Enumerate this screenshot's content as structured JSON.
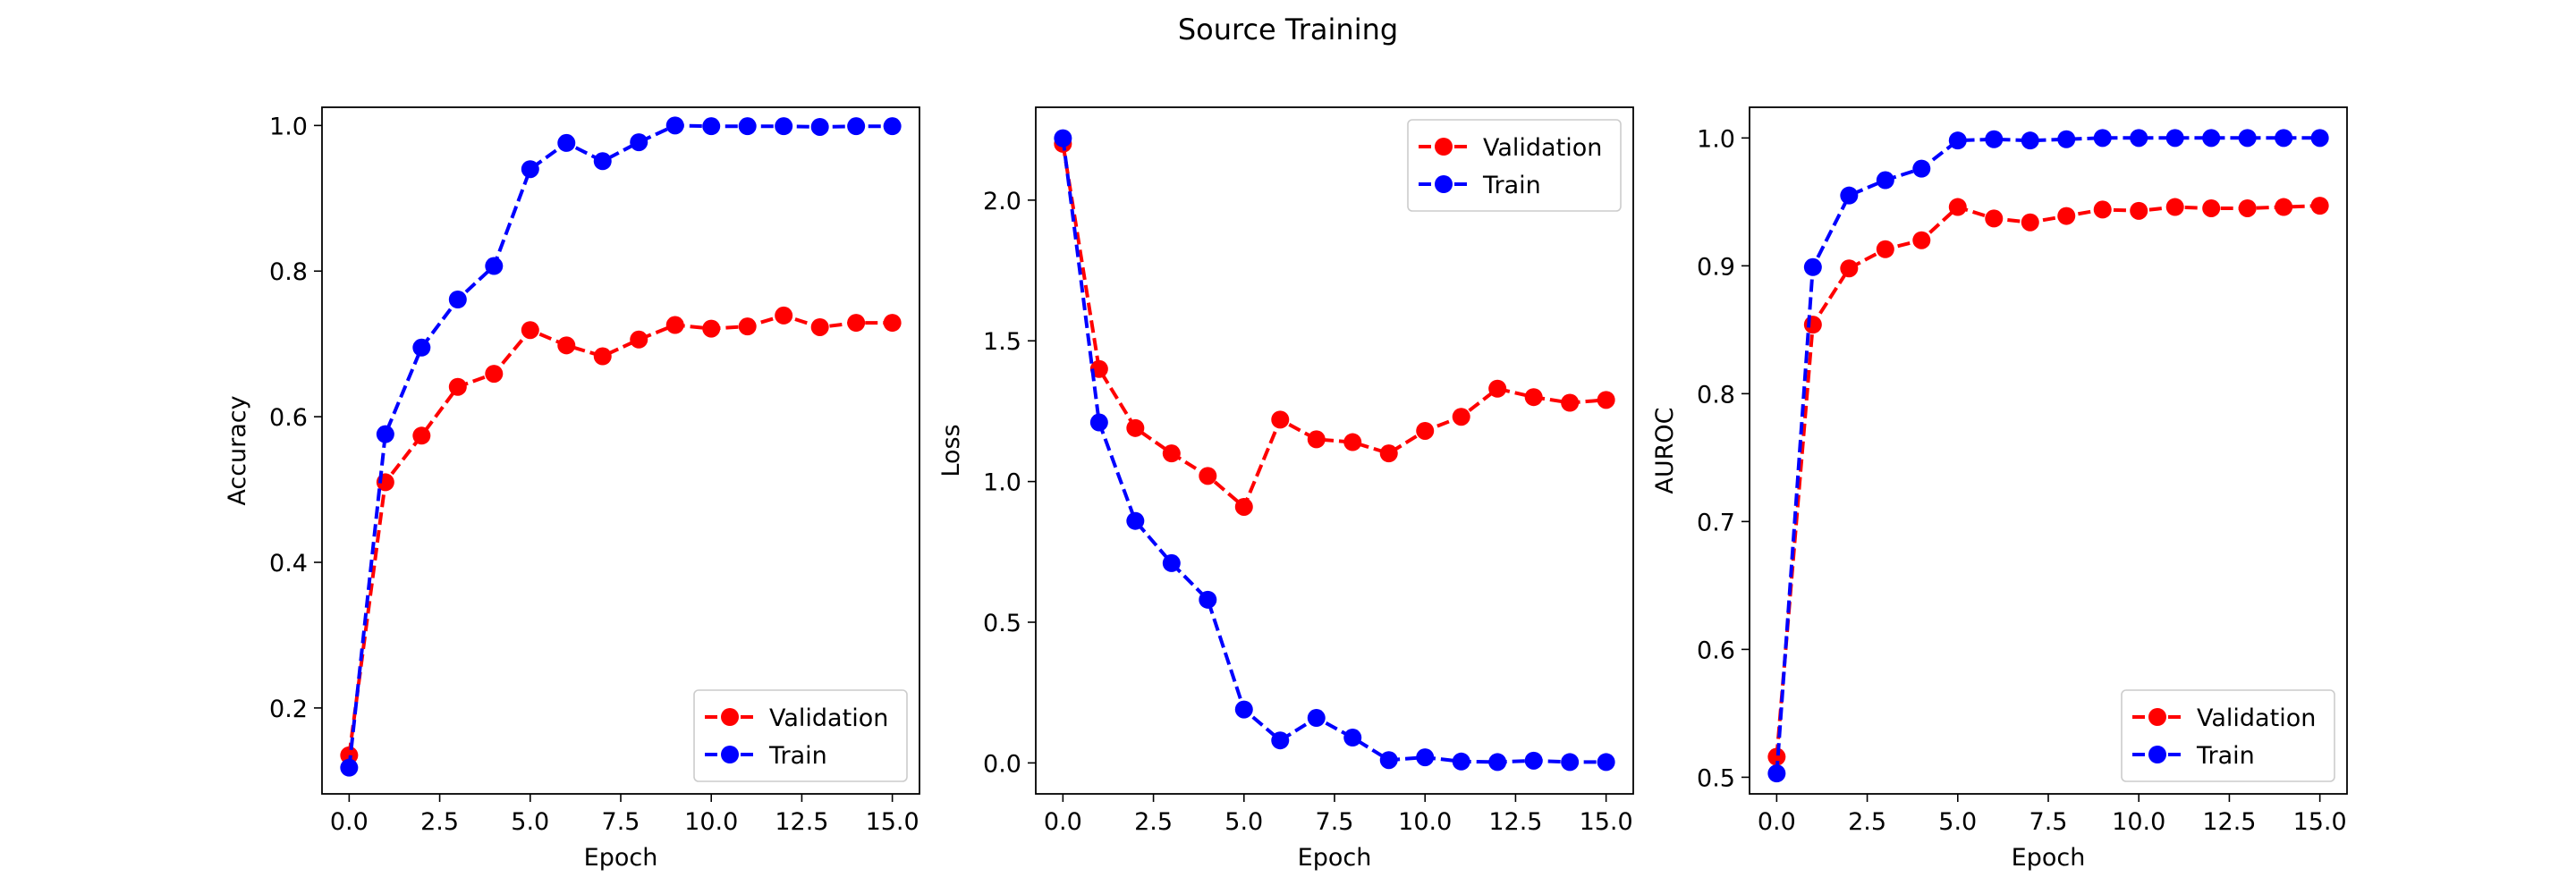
{
  "figure": {
    "title": "Source Training"
  },
  "chart_data": [
    {
      "type": "line",
      "xlabel": "Epoch",
      "ylabel": "Accuracy",
      "xlim": [
        -0.75,
        15.75
      ],
      "ylim": [
        0.082,
        1.025
      ],
      "xticks": [
        "0.0",
        "2.5",
        "5.0",
        "7.5",
        "10.0",
        "12.5",
        "15.0"
      ],
      "yticks": [
        "0.2",
        "0.4",
        "0.6",
        "0.8",
        "1.0"
      ],
      "legend_position": "lower-right",
      "x": [
        0,
        1,
        2,
        3,
        4,
        5,
        6,
        7,
        8,
        9,
        10,
        11,
        12,
        13,
        14,
        15
      ],
      "series": [
        {
          "name": "Validation",
          "color": "#ff0000",
          "style": "dashed, circle markers",
          "values": [
            0.135,
            0.51,
            0.574,
            0.641,
            0.659,
            0.719,
            0.698,
            0.683,
            0.706,
            0.726,
            0.721,
            0.724,
            0.739,
            0.723,
            0.729,
            0.729
          ]
        },
        {
          "name": "Train",
          "color": "#0000ff",
          "style": "dashed, circle markers",
          "values": [
            0.118,
            0.576,
            0.695,
            0.761,
            0.807,
            0.94,
            0.976,
            0.951,
            0.977,
            1.0,
            0.999,
            0.999,
            0.999,
            0.998,
            0.999,
            0.999
          ]
        }
      ]
    },
    {
      "type": "line",
      "xlabel": "Epoch",
      "ylabel": "Loss",
      "xlim": [
        -0.75,
        15.75
      ],
      "ylim": [
        -0.11,
        2.33
      ],
      "xticks": [
        "0.0",
        "2.5",
        "5.0",
        "7.5",
        "10.0",
        "12.5",
        "15.0"
      ],
      "yticks": [
        "0.0",
        "0.5",
        "1.0",
        "1.5",
        "2.0"
      ],
      "legend_position": "upper-right",
      "x": [
        0,
        1,
        2,
        3,
        4,
        5,
        6,
        7,
        8,
        9,
        10,
        11,
        12,
        13,
        14,
        15
      ],
      "series": [
        {
          "name": "Validation",
          "color": "#ff0000",
          "style": "dashed, circle markers",
          "values": [
            2.2,
            1.4,
            1.19,
            1.1,
            1.02,
            0.91,
            1.22,
            1.15,
            1.14,
            1.1,
            1.18,
            1.23,
            1.33,
            1.3,
            1.28,
            1.29
          ]
        },
        {
          "name": "Train",
          "color": "#0000ff",
          "style": "dashed, circle markers",
          "values": [
            2.22,
            1.21,
            0.86,
            0.71,
            0.58,
            0.19,
            0.08,
            0.16,
            0.09,
            0.01,
            0.02,
            0.005,
            0.003,
            0.008,
            0.003,
            0.003
          ]
        }
      ]
    },
    {
      "type": "line",
      "xlabel": "Epoch",
      "ylabel": "AUROC",
      "xlim": [
        -0.75,
        15.75
      ],
      "ylim": [
        0.487,
        1.024
      ],
      "xticks": [
        "0.0",
        "2.5",
        "5.0",
        "7.5",
        "10.0",
        "12.5",
        "15.0"
      ],
      "yticks": [
        "0.5",
        "0.6",
        "0.7",
        "0.8",
        "0.9",
        "1.0"
      ],
      "legend_position": "lower-right",
      "x": [
        0,
        1,
        2,
        3,
        4,
        5,
        6,
        7,
        8,
        9,
        10,
        11,
        12,
        13,
        14,
        15
      ],
      "series": [
        {
          "name": "Validation",
          "color": "#ff0000",
          "style": "dashed, circle markers",
          "values": [
            0.516,
            0.854,
            0.898,
            0.913,
            0.92,
            0.946,
            0.937,
            0.934,
            0.939,
            0.944,
            0.943,
            0.946,
            0.945,
            0.945,
            0.946,
            0.947
          ]
        },
        {
          "name": "Train",
          "color": "#0000ff",
          "style": "dashed, circle markers",
          "values": [
            0.503,
            0.899,
            0.955,
            0.967,
            0.976,
            0.998,
            0.999,
            0.998,
            0.999,
            1.0,
            1.0,
            1.0,
            1.0,
            1.0,
            1.0,
            1.0
          ]
        }
      ]
    }
  ]
}
